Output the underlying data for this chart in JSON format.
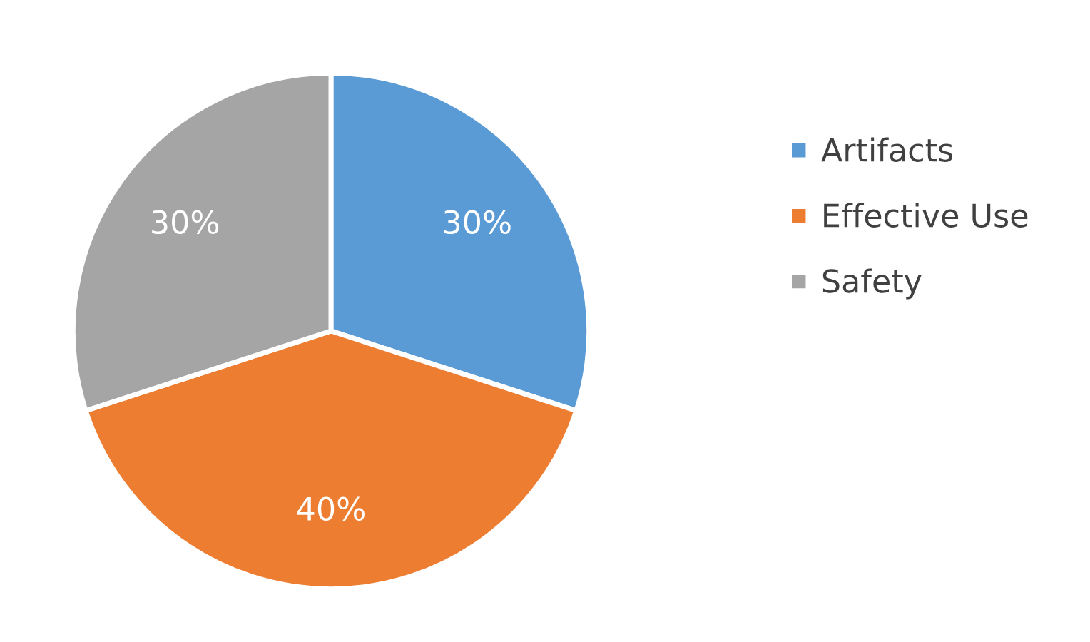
{
  "chart_data": {
    "type": "pie",
    "categories": [
      "Artifacts",
      "Effective Use",
      "Safety"
    ],
    "values": [
      30,
      40,
      30
    ],
    "colors": [
      "#5b9bd5",
      "#ed7d31",
      "#a5a5a5"
    ],
    "data_labels": true,
    "value_labels": [
      "30%",
      "40%",
      "30%"
    ],
    "legend": "right"
  }
}
